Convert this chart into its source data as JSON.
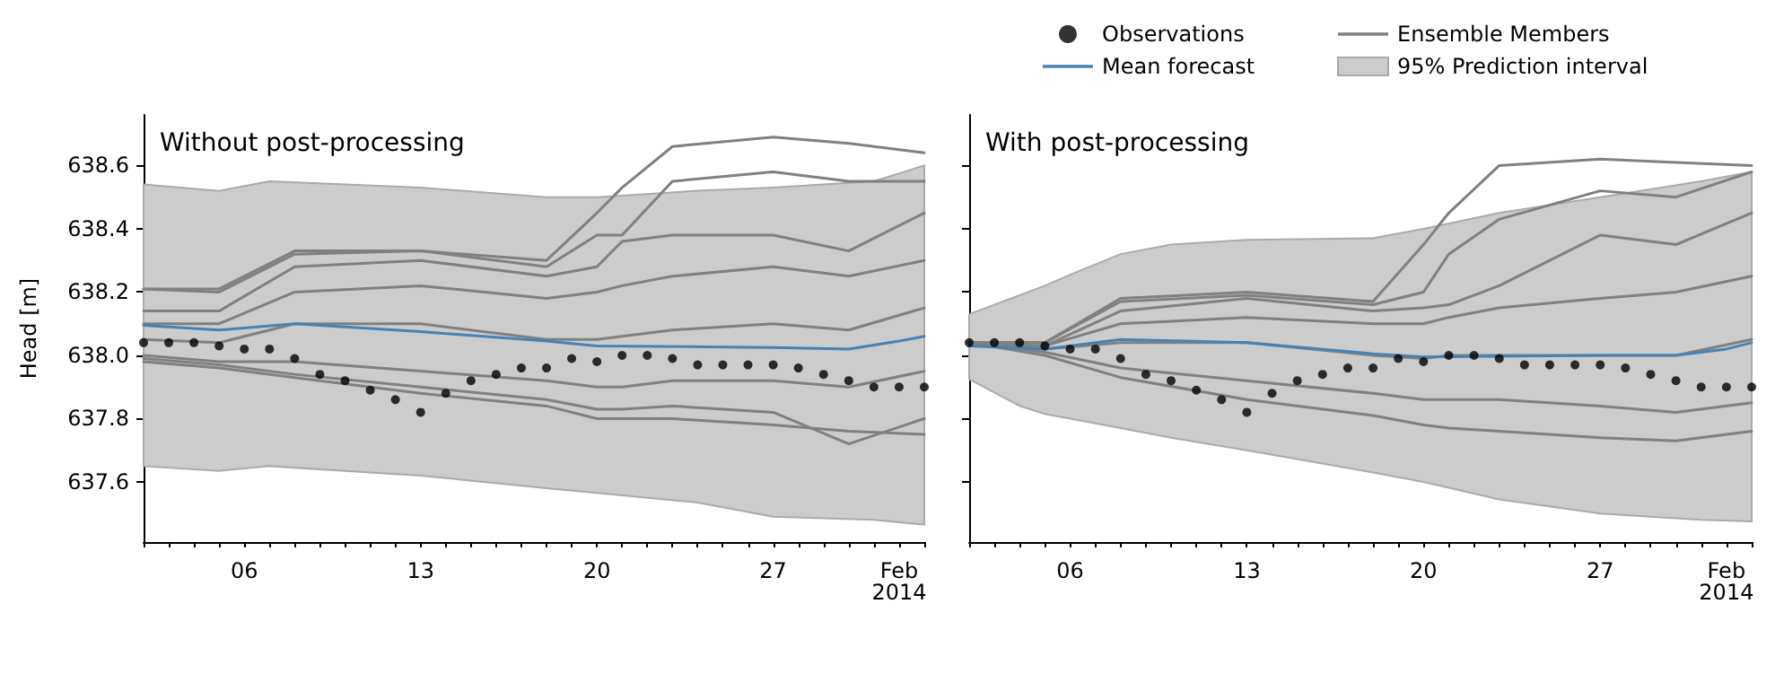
{
  "chart_data": [
    {
      "type": "line",
      "title": "Without post-processing",
      "ylabel": "Head [m]",
      "xlim": [
        "2014-01-02",
        "2014-02-02"
      ],
      "ylim": [
        637.41,
        638.76
      ],
      "yticks": [
        637.6,
        637.8,
        {
          "value": 638,
          "label": "638.0"
        },
        638.2,
        638.4,
        638.6
      ],
      "xticks": [
        {
          "value": "2014-01-02",
          "label": null
        },
        {
          "value": "2014-01-03",
          "label": null
        },
        {
          "value": "2014-01-04",
          "label": null
        },
        {
          "value": "2014-01-05",
          "label": null
        },
        {
          "value": "2014-01-06",
          "label": "06"
        },
        {
          "value": "2014-01-07",
          "label": null
        },
        {
          "value": "2014-01-08",
          "label": null
        },
        {
          "value": "2014-01-09",
          "label": null
        },
        {
          "value": "2014-01-10",
          "label": null
        },
        {
          "value": "2014-01-11",
          "label": null
        },
        {
          "value": "2014-01-12",
          "label": null
        },
        {
          "value": "2014-01-13",
          "label": "13"
        },
        {
          "value": "2014-01-14",
          "label": null
        },
        {
          "value": "2014-01-15",
          "label": null
        },
        {
          "value": "2014-01-16",
          "label": null
        },
        {
          "value": "2014-01-17",
          "label": null
        },
        {
          "value": "2014-01-18",
          "label": null
        },
        {
          "value": "2014-01-19",
          "label": null
        },
        {
          "value": "2014-01-20",
          "label": "20"
        },
        {
          "value": "2014-01-21",
          "label": null
        },
        {
          "value": "2014-01-22",
          "label": null
        },
        {
          "value": "2014-01-23",
          "label": null
        },
        {
          "value": "2014-01-24",
          "label": null
        },
        {
          "value": "2014-01-25",
          "label": null
        },
        {
          "value": "2014-01-26",
          "label": null
        },
        {
          "value": "2014-01-27",
          "label": "27"
        },
        {
          "value": "2014-01-28",
          "label": null
        },
        {
          "value": "2014-01-29",
          "label": null
        },
        {
          "value": "2014-01-30",
          "label": null
        },
        {
          "value": "2014-01-31",
          "label": null
        },
        {
          "value": "2014-02-01",
          "label": "Feb\n2014"
        },
        {
          "value": "2014-02-02",
          "label": null
        }
      ],
      "series": [
        {
          "type": "scatter",
          "color": "#000000",
          "x": [
            "2014-01-02",
            "2014-01-03",
            "2014-01-04",
            "2014-01-05",
            "2014-01-06",
            "2014-01-07",
            "2014-01-08",
            "2014-01-09",
            "2014-01-10",
            "2014-01-11",
            "2014-01-12",
            "2014-01-13",
            "2014-01-14",
            "2014-01-15",
            "2014-01-16",
            "2014-01-17",
            "2014-01-18",
            "2014-01-19",
            "2014-01-20",
            "2014-01-21",
            "2014-01-22",
            "2014-01-23",
            "2014-01-24",
            "2014-01-25",
            "2014-01-26",
            "2014-01-27",
            "2014-01-28",
            "2014-01-29",
            "2014-01-30",
            "2014-01-31",
            "2014-02-01",
            "2014-02-02"
          ],
          "values": [
            638.04,
            638.04,
            638.04,
            638.03,
            638.02,
            638.02,
            637.99,
            637.94,
            637.92,
            637.89,
            637.86,
            637.82,
            637.88,
            637.92,
            637.94,
            637.96,
            637.96,
            637.99,
            637.98,
            638.0,
            638.0,
            637.99,
            637.97,
            637.97,
            637.97,
            637.97,
            637.96,
            637.94,
            637.92,
            637.9,
            637.9,
            637.9
          ]
        },
        {
          "type": "line",
          "color": "#4682b4",
          "x": [
            "2014-01-02",
            "2014-01-05",
            "2014-01-08",
            "2014-01-13",
            "2014-01-18",
            "2014-01-20",
            "2014-01-27",
            "2014-01-30",
            "2014-02-01",
            "2014-02-02"
          ],
          "values": [
            638.095,
            638.08,
            638.1,
            638.075,
            638.045,
            638.03,
            638.025,
            638.02,
            638.045,
            638.06
          ]
        },
        {
          "type": "line",
          "color": "#808080",
          "x": [
            "2014-01-02",
            "2014-01-05",
            "2014-01-08",
            "2014-01-13",
            "2014-01-18",
            "2014-01-20",
            "2014-01-21",
            "2014-01-23",
            "2014-01-27",
            "2014-01-30",
            "2014-02-02"
          ],
          "values": [
            638.21,
            638.21,
            638.33,
            638.33,
            638.3,
            638.45,
            638.53,
            638.66,
            638.69,
            638.67,
            638.64
          ]
        },
        {
          "type": "line",
          "color": "#808080",
          "x": [
            "2014-01-02",
            "2014-01-05",
            "2014-01-08",
            "2014-01-13",
            "2014-01-18",
            "2014-01-20",
            "2014-01-21",
            "2014-01-23",
            "2014-01-27",
            "2014-01-30",
            "2014-02-02"
          ],
          "values": [
            638.21,
            638.2,
            638.32,
            638.33,
            638.28,
            638.38,
            638.38,
            638.55,
            638.58,
            638.55,
            638.55
          ]
        },
        {
          "type": "line",
          "color": "#808080",
          "x": [
            "2014-01-02",
            "2014-01-05",
            "2014-01-08",
            "2014-01-13",
            "2014-01-18",
            "2014-01-20",
            "2014-01-21",
            "2014-01-23",
            "2014-01-27",
            "2014-01-30",
            "2014-02-02"
          ],
          "values": [
            638.14,
            638.14,
            638.28,
            638.3,
            638.25,
            638.28,
            638.36,
            638.38,
            638.38,
            638.33,
            638.45
          ]
        },
        {
          "type": "line",
          "color": "#808080",
          "x": [
            "2014-01-02",
            "2014-01-05",
            "2014-01-08",
            "2014-01-13",
            "2014-01-18",
            "2014-01-20",
            "2014-01-21",
            "2014-01-23",
            "2014-01-27",
            "2014-01-30",
            "2014-02-02"
          ],
          "values": [
            638.1,
            638.1,
            638.2,
            638.22,
            638.18,
            638.2,
            638.22,
            638.25,
            638.28,
            638.25,
            638.3
          ]
        },
        {
          "type": "line",
          "color": "#808080",
          "x": [
            "2014-01-02",
            "2014-01-05",
            "2014-01-08",
            "2014-01-13",
            "2014-01-18",
            "2014-01-20",
            "2014-01-21",
            "2014-01-23",
            "2014-01-27",
            "2014-01-30",
            "2014-02-02"
          ],
          "values": [
            638.05,
            638.04,
            638.1,
            638.1,
            638.05,
            638.05,
            638.06,
            638.08,
            638.1,
            638.08,
            638.15
          ]
        },
        {
          "type": "line",
          "color": "#808080",
          "x": [
            "2014-01-02",
            "2014-01-05",
            "2014-01-08",
            "2014-01-13",
            "2014-01-18",
            "2014-01-20",
            "2014-01-21",
            "2014-01-23",
            "2014-01-27",
            "2014-01-30",
            "2014-02-02"
          ],
          "values": [
            638.0,
            637.98,
            637.98,
            637.95,
            637.92,
            637.9,
            637.9,
            637.92,
            637.92,
            637.9,
            637.95
          ]
        },
        {
          "type": "line",
          "color": "#808080",
          "x": [
            "2014-01-02",
            "2014-01-05",
            "2014-01-08",
            "2014-01-13",
            "2014-01-18",
            "2014-01-20",
            "2014-01-21",
            "2014-01-23",
            "2014-01-27",
            "2014-01-30",
            "2014-02-02"
          ],
          "values": [
            637.98,
            637.96,
            637.93,
            637.88,
            637.84,
            637.8,
            637.8,
            637.8,
            637.78,
            637.76,
            637.75
          ]
        },
        {
          "type": "line",
          "color": "#808080",
          "x": [
            "2014-01-02",
            "2014-01-05",
            "2014-01-08",
            "2014-01-13",
            "2014-01-18",
            "2014-01-20",
            "2014-01-21",
            "2014-01-23",
            "2014-01-27",
            "2014-01-30",
            "2014-02-02"
          ],
          "values": [
            637.99,
            637.97,
            637.94,
            637.9,
            637.86,
            637.83,
            637.83,
            637.84,
            637.82,
            637.72,
            637.8
          ]
        },
        {
          "type": "area",
          "color": "#cccccc",
          "x": [
            "2014-01-02",
            "2014-01-05",
            "2014-01-07",
            "2014-01-13",
            "2014-01-18",
            "2014-01-20",
            "2014-01-24",
            "2014-01-27",
            "2014-01-31",
            "2014-02-02"
          ],
          "values": [
            null,
            null,
            null,
            null,
            null,
            null,
            null,
            null,
            null,
            null
          ],
          "upper": [
            638.54,
            638.52,
            638.55,
            638.53,
            638.5,
            638.5,
            638.52,
            638.53,
            638.55,
            638.6
          ],
          "lower": [
            637.65,
            637.635,
            637.65,
            637.62,
            637.58,
            637.565,
            637.535,
            637.49,
            637.48,
            637.465
          ]
        }
      ]
    },
    {
      "type": "line",
      "title": "With post-processing",
      "legend": "top",
      "tick_labels": "x",
      "xlim": [
        "2014-01-02",
        "2014-02-02"
      ],
      "ylim": [
        637.41,
        638.76
      ],
      "yticks": [
        637.6,
        637.8,
        638,
        638.2,
        638.4,
        638.6
      ],
      "xticks": [
        {
          "value": "2014-01-02",
          "label": null
        },
        {
          "value": "2014-01-03",
          "label": null
        },
        {
          "value": "2014-01-04",
          "label": null
        },
        {
          "value": "2014-01-05",
          "label": null
        },
        {
          "value": "2014-01-06",
          "label": "06"
        },
        {
          "value": "2014-01-07",
          "label": null
        },
        {
          "value": "2014-01-08",
          "label": null
        },
        {
          "value": "2014-01-09",
          "label": null
        },
        {
          "value": "2014-01-10",
          "label": null
        },
        {
          "value": "2014-01-11",
          "label": null
        },
        {
          "value": "2014-01-12",
          "label": null
        },
        {
          "value": "2014-01-13",
          "label": "13"
        },
        {
          "value": "2014-01-14",
          "label": null
        },
        {
          "value": "2014-01-15",
          "label": null
        },
        {
          "value": "2014-01-16",
          "label": null
        },
        {
          "value": "2014-01-17",
          "label": null
        },
        {
          "value": "2014-01-18",
          "label": null
        },
        {
          "value": "2014-01-19",
          "label": null
        },
        {
          "value": "2014-01-20",
          "label": "20"
        },
        {
          "value": "2014-01-21",
          "label": null
        },
        {
          "value": "2014-01-22",
          "label": null
        },
        {
          "value": "2014-01-23",
          "label": null
        },
        {
          "value": "2014-01-24",
          "label": null
        },
        {
          "value": "2014-01-25",
          "label": null
        },
        {
          "value": "2014-01-26",
          "label": null
        },
        {
          "value": "2014-01-27",
          "label": "27"
        },
        {
          "value": "2014-01-28",
          "label": null
        },
        {
          "value": "2014-01-29",
          "label": null
        },
        {
          "value": "2014-01-30",
          "label": null
        },
        {
          "value": "2014-01-31",
          "label": null
        },
        {
          "value": "2014-02-01",
          "label": "Feb\n2014"
        },
        {
          "value": "2014-02-02",
          "label": null
        }
      ],
      "series": [
        {
          "name": "Observations",
          "type": "scatter",
          "color": "#000000",
          "x": [
            "2014-01-02",
            "2014-01-03",
            "2014-01-04",
            "2014-01-05",
            "2014-01-06",
            "2014-01-07",
            "2014-01-08",
            "2014-01-09",
            "2014-01-10",
            "2014-01-11",
            "2014-01-12",
            "2014-01-13",
            "2014-01-14",
            "2014-01-15",
            "2014-01-16",
            "2014-01-17",
            "2014-01-18",
            "2014-01-19",
            "2014-01-20",
            "2014-01-21",
            "2014-01-22",
            "2014-01-23",
            "2014-01-24",
            "2014-01-25",
            "2014-01-26",
            "2014-01-27",
            "2014-01-28",
            "2014-01-29",
            "2014-01-30",
            "2014-01-31",
            "2014-02-01",
            "2014-02-02"
          ],
          "values": [
            638.04,
            638.04,
            638.04,
            638.03,
            638.02,
            638.02,
            637.99,
            637.94,
            637.92,
            637.89,
            637.86,
            637.82,
            637.88,
            637.92,
            637.94,
            637.96,
            637.96,
            637.99,
            637.98,
            638.0,
            638.0,
            637.99,
            637.97,
            637.97,
            637.97,
            637.97,
            637.96,
            637.94,
            637.92,
            637.9,
            637.9,
            637.9
          ]
        },
        {
          "name": "Mean forecast",
          "type": "line",
          "color": "#4682b4",
          "x": [
            "2014-01-02",
            "2014-01-05",
            "2014-01-08",
            "2014-01-13",
            "2014-01-18",
            "2014-01-20",
            "2014-01-27",
            "2014-01-30",
            "2014-02-01",
            "2014-02-02"
          ],
          "values": [
            638.03,
            638.02,
            638.05,
            638.04,
            638.005,
            637.995,
            638.0,
            638.0,
            638.02,
            638.04
          ]
        },
        {
          "name": "Ensemble Members",
          "type": "line",
          "color": "#808080",
          "x": [
            "2014-01-02",
            "2014-01-05",
            "2014-01-08",
            "2014-01-13",
            "2014-01-18",
            "2014-01-20",
            "2014-01-21",
            "2014-01-23",
            "2014-01-27",
            "2014-01-30",
            "2014-02-02"
          ],
          "values": [
            638.04,
            638.04,
            638.18,
            638.2,
            638.17,
            638.35,
            638.45,
            638.6,
            638.62,
            638.61,
            638.6
          ]
        },
        {
          "type": "line",
          "color": "#808080",
          "x": [
            "2014-01-02",
            "2014-01-05",
            "2014-01-08",
            "2014-01-13",
            "2014-01-18",
            "2014-01-20",
            "2014-01-21",
            "2014-01-23",
            "2014-01-27",
            "2014-01-30",
            "2014-02-02"
          ],
          "values": [
            638.04,
            638.04,
            638.17,
            638.19,
            638.16,
            638.2,
            638.32,
            638.43,
            638.52,
            638.5,
            638.58
          ]
        },
        {
          "type": "line",
          "color": "#808080",
          "x": [
            "2014-01-02",
            "2014-01-05",
            "2014-01-08",
            "2014-01-13",
            "2014-01-18",
            "2014-01-20",
            "2014-01-21",
            "2014-01-23",
            "2014-01-27",
            "2014-01-30",
            "2014-02-02"
          ],
          "values": [
            638.04,
            638.03,
            638.14,
            638.18,
            638.14,
            638.15,
            638.16,
            638.22,
            638.38,
            638.35,
            638.45
          ]
        },
        {
          "type": "line",
          "color": "#808080",
          "x": [
            "2014-01-02",
            "2014-01-05",
            "2014-01-08",
            "2014-01-13",
            "2014-01-18",
            "2014-01-20",
            "2014-01-21",
            "2014-01-23",
            "2014-01-27",
            "2014-01-30",
            "2014-02-02"
          ],
          "values": [
            638.04,
            638.03,
            638.1,
            638.12,
            638.1,
            638.1,
            638.12,
            638.15,
            638.18,
            638.2,
            638.25
          ]
        },
        {
          "type": "line",
          "color": "#808080",
          "x": [
            "2014-01-02",
            "2014-01-05",
            "2014-01-08",
            "2014-01-13",
            "2014-01-18",
            "2014-01-20",
            "2014-01-21",
            "2014-01-23",
            "2014-01-27",
            "2014-01-30",
            "2014-02-02"
          ],
          "values": [
            638.04,
            638.02,
            638.04,
            638.04,
            638.0,
            637.99,
            638.0,
            638.0,
            638.0,
            638.0,
            638.05
          ]
        },
        {
          "type": "line",
          "color": "#808080",
          "x": [
            "2014-01-02",
            "2014-01-05",
            "2014-01-08",
            "2014-01-13",
            "2014-01-18",
            "2014-01-20",
            "2014-01-21",
            "2014-01-23",
            "2014-01-27",
            "2014-01-30",
            "2014-02-02"
          ],
          "values": [
            638.04,
            638.01,
            637.96,
            637.92,
            637.88,
            637.86,
            637.86,
            637.86,
            637.84,
            637.82,
            637.85
          ]
        },
        {
          "type": "line",
          "color": "#808080",
          "x": [
            "2014-01-02",
            "2014-01-05",
            "2014-01-08",
            "2014-01-13",
            "2014-01-18",
            "2014-01-20",
            "2014-01-21",
            "2014-01-23",
            "2014-01-27",
            "2014-01-30",
            "2014-02-02"
          ],
          "values": [
            638.04,
            638.0,
            637.93,
            637.86,
            637.81,
            637.78,
            637.77,
            637.76,
            637.74,
            637.73,
            637.76
          ]
        },
        {
          "name": "95% Prediction interval",
          "type": "area",
          "color": "#cccccc",
          "x": [
            "2014-01-02",
            "2014-01-04",
            "2014-01-05",
            "2014-01-06",
            "2014-01-08",
            "2014-01-10",
            "2014-01-13",
            "2014-01-18",
            "2014-01-20",
            "2014-01-23",
            "2014-01-27",
            "2014-01-31",
            "2014-02-02"
          ],
          "values": [
            null,
            null,
            null,
            null,
            null,
            null,
            null,
            null,
            null,
            null,
            null,
            null,
            null
          ],
          "upper": [
            638.13,
            638.19,
            638.22,
            638.255,
            638.32,
            638.35,
            638.365,
            638.37,
            638.4,
            638.45,
            638.5,
            638.55,
            638.58
          ],
          "lower": [
            637.925,
            637.84,
            637.815,
            637.8,
            637.77,
            637.74,
            637.7,
            637.63,
            637.6,
            637.545,
            637.5,
            637.48,
            637.475
          ]
        }
      ]
    }
  ]
}
